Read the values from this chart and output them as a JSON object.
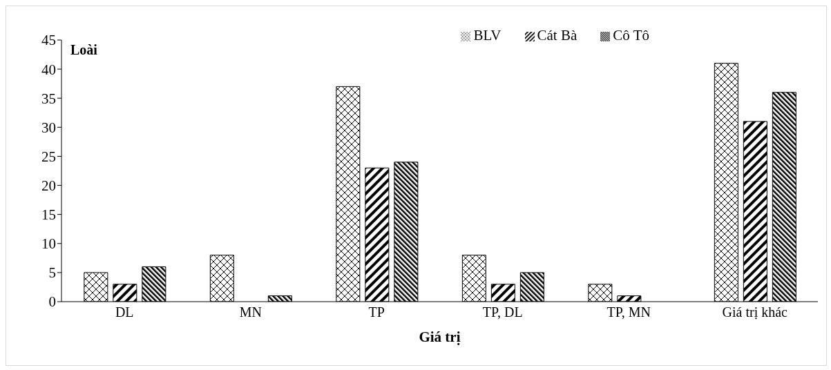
{
  "chart_data": {
    "type": "bar",
    "xlabel": "Giá trị",
    "ylabel": "Loài",
    "categories": [
      "DL",
      "MN",
      "TP",
      "TP, DL",
      "TP, MN",
      "Giá trị khác"
    ],
    "series": [
      {
        "name": "BLV",
        "color": "#000000",
        "values": [
          5,
          8,
          37,
          8,
          3,
          41
        ]
      },
      {
        "name": "Cát Bà",
        "color": "#000000",
        "values": [
          3,
          0,
          23,
          3,
          1,
          31
        ]
      },
      {
        "name": "Cô Tô",
        "color": "#000000",
        "values": [
          6,
          1,
          24,
          5,
          0,
          36
        ]
      }
    ],
    "ylim": [
      0,
      45
    ],
    "yticks": [
      0,
      5,
      10,
      15,
      20,
      25,
      30,
      35,
      40,
      45
    ],
    "legend": "top right"
  }
}
